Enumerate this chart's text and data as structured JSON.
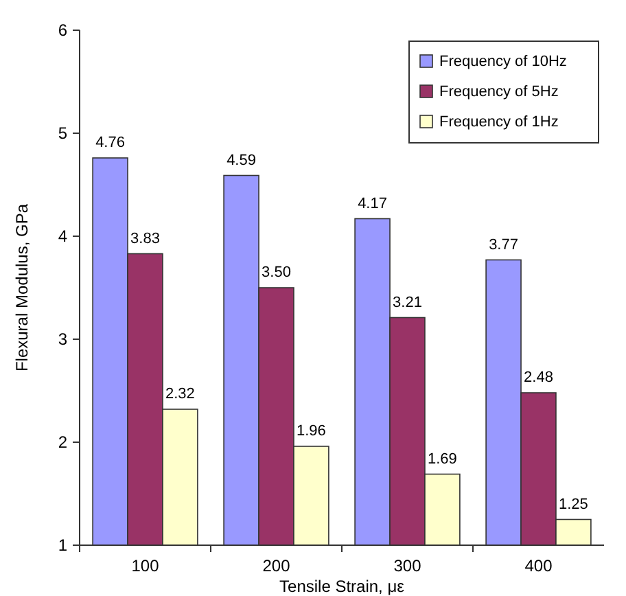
{
  "chart_data": {
    "type": "bar",
    "xlabel": "Tensile Strain, με",
    "ylabel": "Flexural Modulus, GPa",
    "categories": [
      "100",
      "200",
      "300",
      "400"
    ],
    "series": [
      {
        "name": "Frequency of 10Hz",
        "color": "#9999ff",
        "values": [
          4.76,
          4.59,
          4.17,
          3.77
        ],
        "value_labels": [
          "4.76",
          "4.59",
          "4.17",
          "3.77"
        ]
      },
      {
        "name": "Frequency of 5Hz",
        "color": "#993366",
        "values": [
          3.83,
          3.5,
          3.21,
          2.48
        ],
        "value_labels": [
          "3.83",
          "3.50",
          "3.21",
          "2.48"
        ]
      },
      {
        "name": "Frequency of 1Hz",
        "color": "#ffffcc",
        "values": [
          2.32,
          1.96,
          1.69,
          1.25
        ],
        "value_labels": [
          "2.32",
          "1.96",
          "1.69",
          "1.25"
        ]
      }
    ],
    "ylim": [
      1,
      6
    ],
    "yticks": [
      1,
      2,
      3,
      4,
      5,
      6
    ],
    "grid": false,
    "legend": "top right"
  }
}
